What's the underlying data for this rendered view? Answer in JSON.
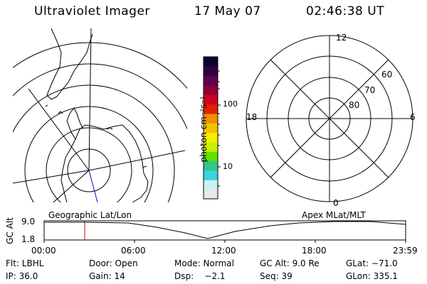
{
  "header": {
    "title": "Ultraviolet Imager",
    "date": "17 May 07",
    "time": "02:46:38 UT"
  },
  "colorbar": {
    "unit_label": "photon cm⁻²s⁻¹",
    "ticks": [
      "100",
      "10"
    ],
    "colors": [
      "#e8e8e8",
      "#c8f0f0",
      "#40d0e0",
      "#30c890",
      "#60e000",
      "#c8f000",
      "#f0f000",
      "#f8c000",
      "#f09000",
      "#e02000",
      "#d00020",
      "#900030",
      "#600050",
      "#300040",
      "#100030"
    ]
  },
  "polar": {
    "mlt_labels": {
      "top": "12",
      "left": "18",
      "right": "6",
      "bottom": "0"
    },
    "lat_labels": [
      "60",
      "70",
      "80"
    ]
  },
  "track": {
    "left_title": "Geographic Lat/Lon",
    "right_title": "Apex MLat/MLT",
    "axis_label": "GC Alt",
    "y_ticks": [
      "9.0",
      "1.8"
    ],
    "x_ticks": [
      "00:00",
      "06:00",
      "12:00",
      "18:00",
      "23:59"
    ]
  },
  "footer": {
    "row1": [
      "Flt: LBHL",
      "Door: Open",
      "Mode: Normal",
      "GC Alt: 9.0 Re",
      "GLat: −71.0"
    ],
    "row2": [
      "IP: 36.0",
      "Gain: 14",
      "Dsp:    −2.1",
      "Seq: 39",
      "GLon: 335.1"
    ]
  },
  "colors": {
    "marker": "#cc0000",
    "meridian": "#3030c0"
  }
}
